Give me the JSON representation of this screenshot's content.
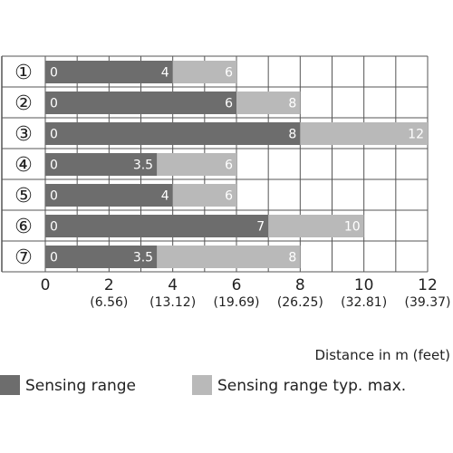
{
  "chart_data": {
    "type": "bar",
    "orientation": "horizontal",
    "stacked_overlay": true,
    "categories": [
      "①",
      "②",
      "③",
      "④",
      "⑤",
      "⑥",
      "⑦"
    ],
    "series": [
      {
        "name": "Sensing range",
        "values": [
          4,
          6,
          8,
          3.5,
          4,
          7,
          3.5
        ],
        "color": "#6d6d6d"
      },
      {
        "name": "Sensing range typ. max.",
        "values": [
          6,
          8,
          12,
          6,
          6,
          10,
          8
        ],
        "color": "#b9b9b9"
      }
    ],
    "start_labels": [
      "0",
      "0",
      "0",
      "0",
      "0",
      "0",
      "0"
    ],
    "range_labels": [
      "4",
      "6",
      "8",
      "3.5",
      "4",
      "7",
      "3.5"
    ],
    "max_labels": [
      "6",
      "8",
      "12",
      "6",
      "6",
      "10",
      "8"
    ],
    "x_ticks": [
      0,
      2,
      4,
      6,
      8,
      10,
      12
    ],
    "x_tick_labels": [
      "0",
      "2",
      "4",
      "6",
      "8",
      "10",
      "12"
    ],
    "x_tick_sublabels": [
      "",
      "(6.56)",
      "(13.12)",
      "(19.69)",
      "(26.25)",
      "(32.81)",
      "(39.37)"
    ],
    "xlim": [
      0,
      12
    ],
    "xlabel": "Distance in m (feet)",
    "title": "",
    "grid": true,
    "legend_position": "bottom",
    "colors": {
      "grid": "#555555",
      "text": "#222222",
      "bar_text": "#ffffff"
    }
  }
}
